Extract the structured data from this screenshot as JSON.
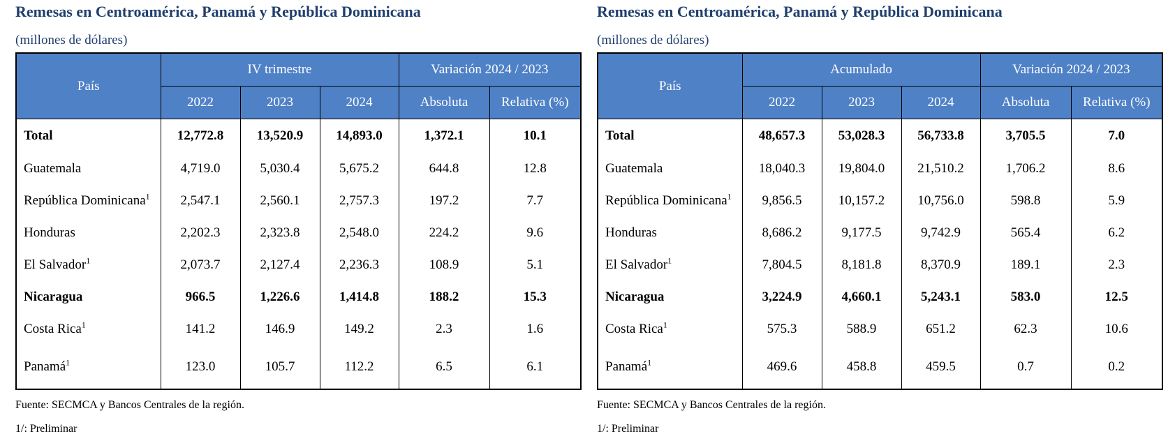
{
  "tables": [
    {
      "title": "Remesas en Centroamérica, Panamá y República Dominicana",
      "subtitle": "(millones de dólares)",
      "header": {
        "country": "País",
        "group": "IV trimestre",
        "variation": "Variación 2024 / 2023",
        "years": [
          "2022",
          "2023",
          "2024"
        ],
        "absolute": "Absoluta",
        "relative": "Relativa (%)"
      },
      "rows": [
        {
          "name": "Total",
          "mark": "",
          "v2022": "12,772.8",
          "v2023": "13,520.9",
          "v2024": "14,893.0",
          "abs": "1,372.1",
          "rel": "10.1",
          "bold": true
        },
        {
          "name": "Guatemala",
          "mark": "",
          "v2022": "4,719.0",
          "v2023": "5,030.4",
          "v2024": "5,675.2",
          "abs": "644.8",
          "rel": "12.8",
          "bold": false
        },
        {
          "name": "República Dominicana",
          "mark": "1",
          "v2022": "2,547.1",
          "v2023": "2,560.1",
          "v2024": "2,757.3",
          "abs": "197.2",
          "rel": "7.7",
          "bold": false
        },
        {
          "name": "Honduras",
          "mark": "",
          "v2022": "2,202.3",
          "v2023": "2,323.8",
          "v2024": "2,548.0",
          "abs": "224.2",
          "rel": "9.6",
          "bold": false
        },
        {
          "name": "El Salvador",
          "mark": "1",
          "v2022": "2,073.7",
          "v2023": "2,127.4",
          "v2024": "2,236.3",
          "abs": "108.9",
          "rel": "5.1",
          "bold": false
        },
        {
          "name": "Nicaragua",
          "mark": "",
          "v2022": "966.5",
          "v2023": "1,226.6",
          "v2024": "1,414.8",
          "abs": "188.2",
          "rel": "15.3",
          "bold": true
        },
        {
          "name": "Costa Rica",
          "mark": "1",
          "v2022": "141.2",
          "v2023": "146.9",
          "v2024": "149.2",
          "abs": "2.3",
          "rel": "1.6",
          "bold": false
        },
        {
          "name": "Panamá",
          "mark": "1",
          "v2022": "123.0",
          "v2023": "105.7",
          "v2024": "112.2",
          "abs": "6.5",
          "rel": "6.1",
          "bold": false
        }
      ],
      "source": "Fuente: SECMCA y Bancos Centrales de la región.",
      "note": "1/: Preliminar"
    },
    {
      "title": "Remesas en Centroamérica, Panamá y República Dominicana",
      "subtitle": "(millones de dólares)",
      "header": {
        "country": "País",
        "group": "Acumulado",
        "variation": "Variación 2024 / 2023",
        "years": [
          "2022",
          "2023",
          "2024"
        ],
        "absolute": "Absoluta",
        "relative": "Relativa (%)"
      },
      "rows": [
        {
          "name": "Total",
          "mark": "",
          "v2022": "48,657.3",
          "v2023": "53,028.3",
          "v2024": "56,733.8",
          "abs": "3,705.5",
          "rel": "7.0",
          "bold": true
        },
        {
          "name": "Guatemala",
          "mark": "",
          "v2022": "18,040.3",
          "v2023": "19,804.0",
          "v2024": "21,510.2",
          "abs": "1,706.2",
          "rel": "8.6",
          "bold": false
        },
        {
          "name": "República Dominicana",
          "mark": "1",
          "v2022": "9,856.5",
          "v2023": "10,157.2",
          "v2024": "10,756.0",
          "abs": "598.8",
          "rel": "5.9",
          "bold": false
        },
        {
          "name": "Honduras",
          "mark": "",
          "v2022": "8,686.2",
          "v2023": "9,177.5",
          "v2024": "9,742.9",
          "abs": "565.4",
          "rel": "6.2",
          "bold": false
        },
        {
          "name": "El Salvador",
          "mark": "1",
          "v2022": "7,804.5",
          "v2023": "8,181.8",
          "v2024": "8,370.9",
          "abs": "189.1",
          "rel": "2.3",
          "bold": false
        },
        {
          "name": "Nicaragua",
          "mark": "",
          "v2022": "3,224.9",
          "v2023": "4,660.1",
          "v2024": "5,243.1",
          "abs": "583.0",
          "rel": "12.5",
          "bold": true
        },
        {
          "name": "Costa Rica",
          "mark": "1",
          "v2022": "575.3",
          "v2023": "588.9",
          "v2024": "651.2",
          "abs": "62.3",
          "rel": "10.6",
          "bold": false
        },
        {
          "name": "Panamá",
          "mark": "1",
          "v2022": "469.6",
          "v2023": "458.8",
          "v2024": "459.5",
          "abs": "0.7",
          "rel": "0.2",
          "bold": false
        }
      ],
      "source": "Fuente: SECMCA y Bancos Centrales de la región.",
      "note": "1/: Preliminar"
    }
  ]
}
